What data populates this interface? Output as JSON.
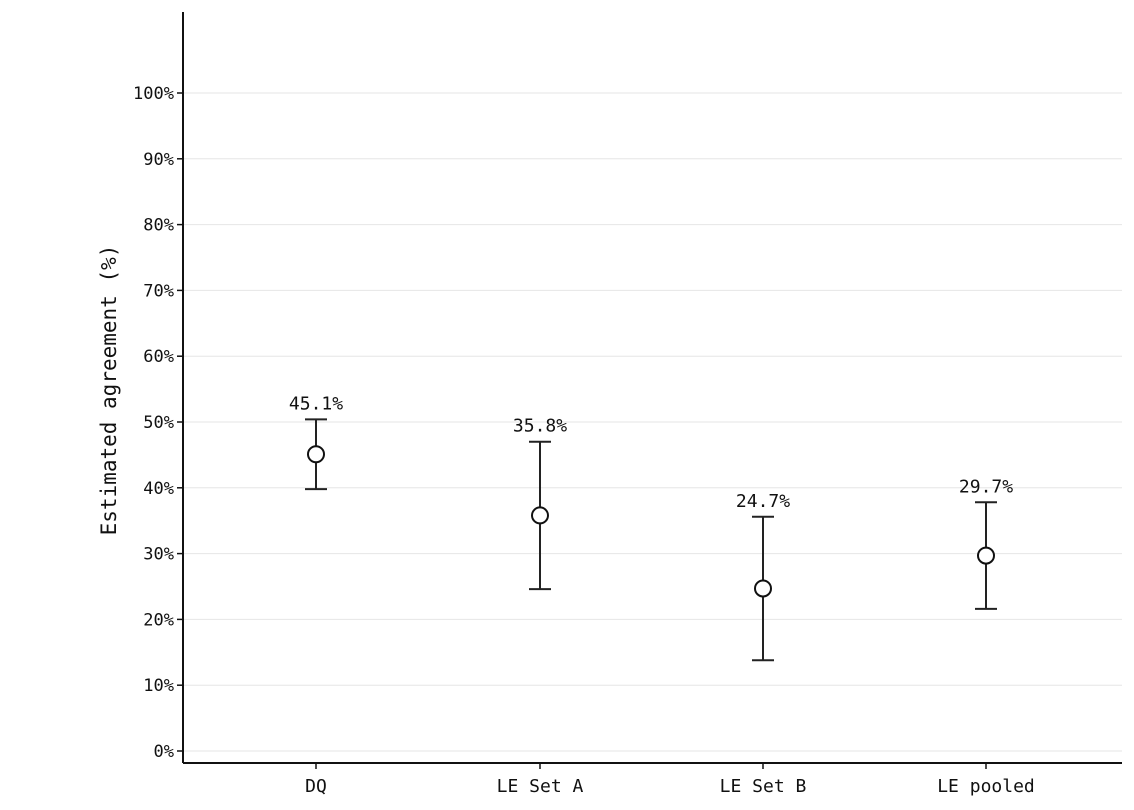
{
  "chart_data": {
    "type": "scatter",
    "title": "",
    "xlabel": "",
    "ylabel": "Estimated agreement (%)",
    "ylim": [
      0,
      100
    ],
    "y_ticks": [
      0,
      10,
      20,
      30,
      40,
      50,
      60,
      70,
      80,
      90,
      100
    ],
    "y_tick_labels": [
      "0%",
      "10%",
      "20%",
      "30%",
      "40%",
      "50%",
      "60%",
      "70%",
      "80%",
      "90%",
      "100%"
    ],
    "categories": [
      "DQ",
      "LE Set A",
      "LE Set B",
      "LE pooled"
    ],
    "values": [
      45.1,
      35.8,
      24.7,
      29.7
    ],
    "lower": [
      39.8,
      24.6,
      13.8,
      21.6
    ],
    "upper": [
      50.4,
      47.0,
      35.6,
      37.8
    ],
    "data_labels": [
      "45.1%",
      "35.8%",
      "24.7%",
      "29.7%"
    ],
    "grid": "horizontal",
    "legend": "none",
    "colors": {
      "marker_fill": "#ffffff",
      "marker_stroke": "#111111",
      "errorbar": "#222222",
      "grid": "#e6e6e6",
      "axis": "#111111"
    }
  }
}
